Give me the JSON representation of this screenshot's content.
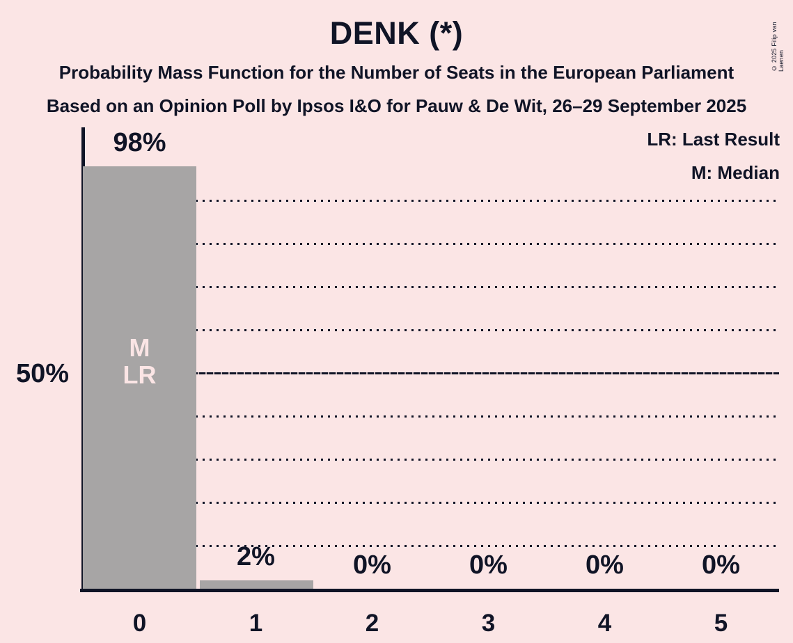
{
  "header": {
    "title": "DENK (*)",
    "subtitle1": "Probability Mass Function for the Number of Seats in the European Parliament",
    "subtitle2": "Based on an Opinion Poll by Ipsos I&O for Pauw & De Wit, 26–29 September 2025"
  },
  "legend": {
    "lr": "LR: Last Result",
    "m": "M: Median"
  },
  "copyright": "© 2025 Filip van Laenen",
  "chart_data": {
    "type": "bar",
    "categories": [
      "0",
      "1",
      "2",
      "3",
      "4",
      "5"
    ],
    "values": [
      98,
      2,
      0,
      0,
      0,
      0
    ],
    "value_labels": [
      "98%",
      "2%",
      "0%",
      "0%",
      "0%",
      "0%"
    ],
    "title": "DENK (*)",
    "ylim": [
      0,
      100
    ],
    "y_axis_label": "50%",
    "solid_gridline_pct": 50,
    "dotted_gridlines_pct": [
      10,
      20,
      30,
      40,
      60,
      70,
      80,
      90
    ],
    "annotation_bar_index": 0,
    "annotation_m": "M",
    "annotation_lr": "LR",
    "legend_position": "top-right",
    "grid": "horizontal-dotted",
    "colors": {
      "background": "#fbe5e5",
      "bar": "#a7a5a5",
      "text": "#101426",
      "bar_annotation_text": "#fbe5e5"
    }
  }
}
